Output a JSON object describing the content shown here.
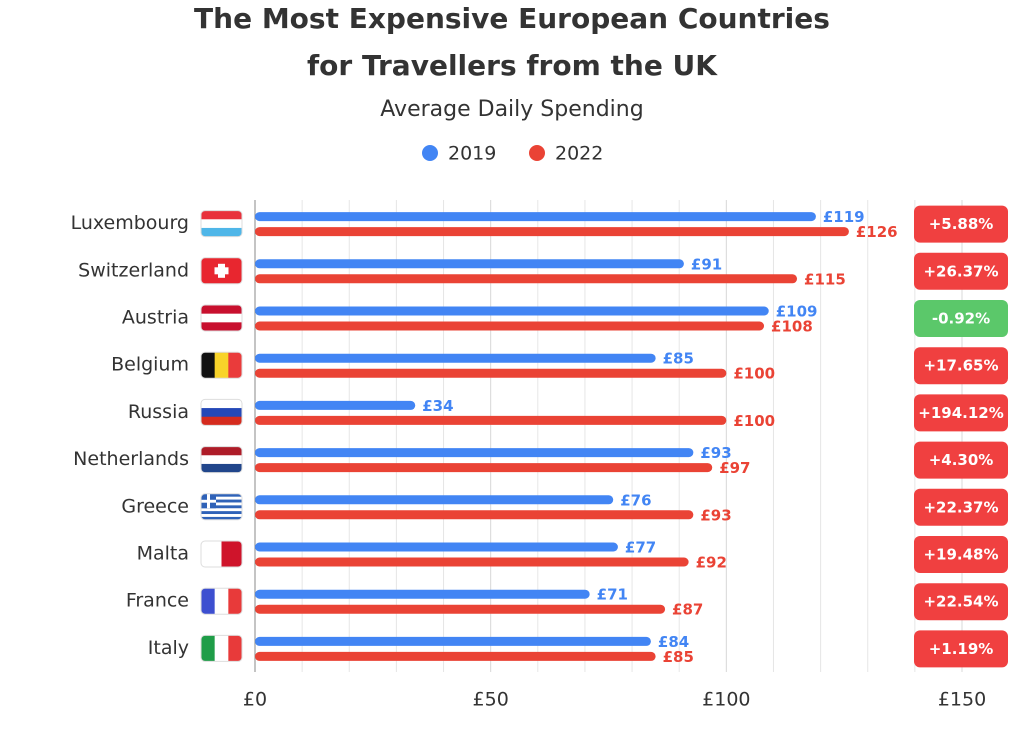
{
  "chart_data": {
    "type": "hbar",
    "title": [
      "The Most Expensive European Countries",
      "for Travellers from the UK"
    ],
    "subtitle": "Average Daily Spending",
    "categories": [
      "Luxembourg",
      "Switzerland",
      "Austria",
      "Belgium",
      "Russia",
      "Netherlands",
      "Greece",
      "Malta",
      "France",
      "Italy"
    ],
    "series": [
      {
        "name": "2019",
        "color": "#4285f4",
        "values": [
          119,
          91,
          109,
          85,
          34,
          93,
          76,
          77,
          71,
          84
        ],
        "value_labels": [
          "£119",
          "£91",
          "£109",
          "£85",
          "£34",
          "£93",
          "£76",
          "£77",
          "£71",
          "£84"
        ]
      },
      {
        "name": "2022",
        "color": "#ea4335",
        "values": [
          126,
          115,
          108,
          100,
          100,
          97,
          93,
          92,
          87,
          85
        ],
        "value_labels": [
          "£126",
          "£115",
          "£108",
          "£100",
          "£100",
          "£97",
          "£93",
          "£92",
          "£87",
          "£85"
        ]
      }
    ],
    "changes": [
      5.88,
      26.37,
      -0.92,
      17.65,
      194.12,
      4.3,
      22.37,
      19.48,
      22.54,
      1.19
    ],
    "change_labels": [
      "+5.88%",
      "+26.37%",
      "-0.92%",
      "+17.65%",
      "+194.12%",
      "+4.30%",
      "+22.37%",
      "+19.48%",
      "+22.54%",
      "+1.19%"
    ],
    "increase_color": "#f04040",
    "decrease_color": "#5bc86a",
    "xlim": [
      0,
      150
    ],
    "xticks": [
      {
        "value": 0,
        "label": "£0"
      },
      {
        "value": 50,
        "label": "£50"
      },
      {
        "value": 100,
        "label": "£100"
      },
      {
        "value": 150,
        "label": "£150"
      }
    ],
    "minor_xticks": [
      10,
      20,
      30,
      40,
      60,
      70,
      80,
      90,
      110,
      120,
      130,
      140
    ],
    "grid": true
  }
}
